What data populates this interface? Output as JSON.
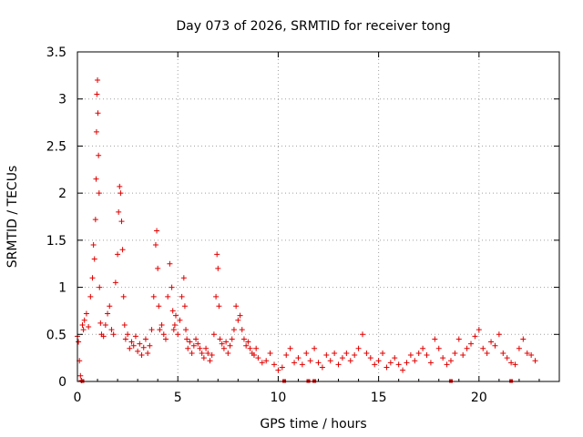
{
  "chart_data": {
    "type": "scatter",
    "title": "Day 073 of 2026, SRMTID for receiver tong",
    "xlabel": "GPS time / hours",
    "ylabel": "SRMTID / TECUs",
    "xlim": [
      0,
      24
    ],
    "ylim": [
      0,
      3.5
    ],
    "xticks": [
      0,
      5,
      10,
      15,
      20
    ],
    "xtick_labels": [
      "0",
      "5",
      "10",
      "15",
      "20"
    ],
    "yticks": [
      0,
      0.5,
      1,
      1.5,
      2,
      2.5,
      3,
      3.5
    ],
    "ytick_labels": [
      "0",
      "0.5",
      "1",
      "1.5",
      "2",
      "2.5",
      "3",
      "3.5"
    ],
    "grid": true,
    "marker": "+",
    "color": "#e00000",
    "series": [
      {
        "name": "SRMTID",
        "x": [
          0.0,
          0.05,
          0.1,
          0.15,
          0.2,
          0.25,
          0.3,
          0.35,
          0.45,
          0.55,
          0.65,
          0.75,
          0.8,
          0.85,
          0.9,
          0.93,
          0.95,
          0.97,
          1.0,
          1.02,
          1.05,
          1.08,
          1.1,
          1.15,
          1.2,
          1.3,
          1.4,
          1.5,
          1.6,
          1.7,
          1.8,
          1.9,
          2.0,
          2.05,
          2.1,
          2.15,
          2.2,
          2.25,
          2.3,
          2.35,
          2.4,
          2.5,
          2.6,
          2.7,
          2.8,
          2.9,
          3.0,
          3.1,
          3.2,
          3.3,
          3.4,
          3.5,
          3.6,
          3.7,
          3.8,
          3.9,
          3.95,
          4.0,
          4.05,
          4.1,
          4.2,
          4.3,
          4.4,
          4.5,
          4.6,
          4.7,
          4.75,
          4.8,
          4.85,
          4.9,
          5.0,
          5.1,
          5.2,
          5.3,
          5.35,
          5.4,
          5.45,
          5.5,
          5.6,
          5.7,
          5.8,
          5.9,
          6.0,
          6.1,
          6.2,
          6.3,
          6.4,
          6.5,
          6.6,
          6.7,
          6.8,
          6.9,
          6.95,
          7.0,
          7.05,
          7.1,
          7.2,
          7.3,
          7.4,
          7.5,
          7.6,
          7.7,
          7.8,
          7.9,
          8.0,
          8.1,
          8.2,
          8.3,
          8.4,
          8.5,
          8.6,
          8.7,
          8.8,
          8.9,
          9.0,
          9.2,
          9.4,
          9.6,
          9.8,
          10.0,
          10.2,
          10.4,
          10.6,
          10.8,
          11.0,
          11.2,
          11.4,
          11.6,
          11.8,
          12.0,
          12.2,
          12.4,
          12.6,
          12.8,
          13.0,
          13.2,
          13.4,
          13.6,
          13.8,
          14.0,
          14.2,
          14.4,
          14.6,
          14.8,
          15.0,
          15.2,
          15.4,
          15.6,
          15.8,
          16.0,
          16.2,
          16.4,
          16.6,
          16.8,
          17.0,
          17.2,
          17.4,
          17.6,
          17.8,
          18.0,
          18.2,
          18.4,
          18.6,
          18.8,
          19.0,
          19.2,
          19.4,
          19.6,
          19.8,
          20.0,
          20.2,
          20.4,
          20.6,
          20.8,
          21.0,
          21.2,
          21.4,
          21.6,
          21.8,
          22.0,
          22.2,
          22.4,
          22.6,
          22.8
        ],
        "y": [
          0.48,
          0.42,
          0.22,
          0.06,
          0.01,
          0.6,
          0.55,
          0.65,
          0.72,
          0.58,
          0.9,
          1.1,
          1.45,
          1.3,
          1.72,
          2.15,
          2.65,
          3.05,
          3.2,
          2.85,
          2.4,
          2.0,
          1.0,
          0.62,
          0.5,
          0.48,
          0.6,
          0.72,
          0.8,
          0.55,
          0.5,
          1.05,
          1.35,
          1.8,
          2.07,
          2.0,
          1.7,
          1.4,
          0.9,
          0.6,
          0.45,
          0.5,
          0.35,
          0.42,
          0.38,
          0.48,
          0.32,
          0.4,
          0.28,
          0.36,
          0.45,
          0.3,
          0.38,
          0.55,
          0.9,
          1.45,
          1.6,
          1.2,
          0.8,
          0.55,
          0.6,
          0.5,
          0.45,
          0.9,
          1.25,
          1.0,
          0.75,
          0.55,
          0.6,
          0.7,
          0.5,
          0.65,
          0.9,
          1.1,
          0.8,
          0.55,
          0.45,
          0.35,
          0.42,
          0.3,
          0.38,
          0.45,
          0.4,
          0.35,
          0.3,
          0.25,
          0.35,
          0.3,
          0.22,
          0.28,
          0.5,
          0.9,
          1.35,
          1.2,
          0.8,
          0.45,
          0.4,
          0.35,
          0.42,
          0.3,
          0.38,
          0.45,
          0.55,
          0.8,
          0.65,
          0.7,
          0.55,
          0.45,
          0.38,
          0.42,
          0.35,
          0.3,
          0.28,
          0.35,
          0.25,
          0.2,
          0.22,
          0.3,
          0.18,
          0.12,
          0.15,
          0.28,
          0.35,
          0.2,
          0.25,
          0.18,
          0.3,
          0.22,
          0.35,
          0.2,
          0.15,
          0.28,
          0.22,
          0.3,
          0.18,
          0.25,
          0.3,
          0.22,
          0.28,
          0.35,
          0.5,
          0.3,
          0.25,
          0.18,
          0.22,
          0.3,
          0.15,
          0.2,
          0.25,
          0.18,
          0.12,
          0.2,
          0.28,
          0.22,
          0.3,
          0.35,
          0.28,
          0.2,
          0.45,
          0.35,
          0.25,
          0.18,
          0.22,
          0.3,
          0.45,
          0.28,
          0.35,
          0.4,
          0.48,
          0.55,
          0.35,
          0.3,
          0.42,
          0.38,
          0.5,
          0.3,
          0.25,
          0.2,
          0.18,
          0.35,
          0.45,
          0.3,
          0.28,
          0.22
        ],
        "baseline_markers_x": [
          0.25,
          10.3,
          11.5,
          11.8,
          18.6,
          21.6
        ]
      }
    ]
  }
}
